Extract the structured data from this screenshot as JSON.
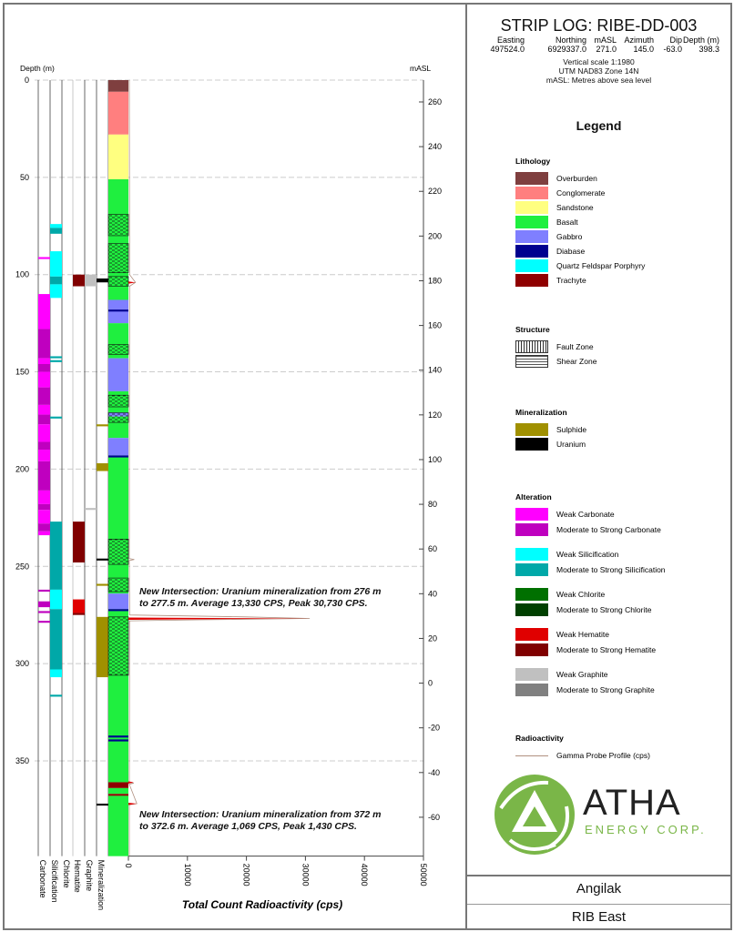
{
  "header": {
    "title": "STRIP LOG: RIBE-DD-003",
    "collar_labels": [
      "Easting",
      "Northing",
      "mASL",
      "Azimuth",
      "Dip",
      "Depth (m)"
    ],
    "collar_values": [
      "497524.0",
      "6929337.0",
      "271.0",
      "145.0",
      "-63.0",
      "398.3"
    ],
    "notes": [
      "Vertical scale 1:1980",
      "UTM NAD83 Zone 14N",
      "mASL: Metres above sea level"
    ]
  },
  "legend": {
    "title": "Legend",
    "sections": [
      {
        "title": "Lithology",
        "items": [
          {
            "label": "Overburden",
            "color": "#7f3f3f"
          },
          {
            "label": "Conglomerate",
            "color": "#ff7f7f"
          },
          {
            "label": "Sandstone",
            "color": "#ffff80"
          },
          {
            "label": "Basalt",
            "color": "#1fef3f"
          },
          {
            "label": "Gabbro",
            "color": "#7f7fff"
          },
          {
            "label": "Diabase",
            "color": "#00008f"
          },
          {
            "label": "Quartz Feldspar Porphyry",
            "color": "#00ffff"
          },
          {
            "label": "Trachyte",
            "color": "#8f0000"
          }
        ]
      },
      {
        "title": "Structure",
        "items": [
          {
            "label": "Fault Zone",
            "pattern": "fault"
          },
          {
            "label": "Shear Zone",
            "pattern": "shear"
          }
        ]
      },
      {
        "title": "Mineralization",
        "items": [
          {
            "label": "Sulphide",
            "color": "#a09000"
          },
          {
            "label": "Uranium",
            "color": "#000000"
          }
        ]
      },
      {
        "title": "Alteration",
        "items": [
          {
            "label": "Weak Carbonate",
            "color": "#ff00ff"
          },
          {
            "label": "Moderate to Strong Carbonate",
            "color": "#bf00bf"
          },
          {
            "label": "Weak Silicification",
            "color": "#00ffff"
          },
          {
            "label": "Moderate to Strong Silicification",
            "color": "#00a8a8"
          },
          {
            "label": "Weak Chlorite",
            "color": "#007000"
          },
          {
            "label": "Moderate to Strong Chlorite",
            "color": "#004000"
          },
          {
            "label": "Weak Hematite",
            "color": "#e00000"
          },
          {
            "label": "Moderate to Strong Hematite",
            "color": "#800000"
          },
          {
            "label": "Weak Graphite",
            "color": "#c0c0c0"
          },
          {
            "label": "Moderate to Strong Graphite",
            "color": "#808080"
          }
        ]
      },
      {
        "title": "Radioactivity",
        "items": [
          {
            "label": "Gamma Probe Profile (cps)",
            "line": "#b09080"
          }
        ]
      }
    ]
  },
  "logo": {
    "name": "ATHA",
    "sub": "ENERGY CORP."
  },
  "footer": {
    "project": "Angilak",
    "area": "RIB East"
  },
  "annotations": [
    {
      "text": [
        "New Intersection: Uranium mineralization from 276 m",
        "to 277.5 m. Average 13,330 CPS, Peak 30,730 CPS."
      ]
    },
    {
      "text": [
        "New Intersection: Uranium mineralization from 372 m",
        "to 372.6 m. Average 1,069 CPS, Peak 1,430 CPS."
      ]
    }
  ],
  "chart_data": {
    "type": "strip-log",
    "ylabel_left": "Depth (m)",
    "ylabel_right": "mASL",
    "xlabel": "Total Count Radioactivity (cps)",
    "depth_ticks": [
      0,
      50,
      100,
      150,
      200,
      250,
      300,
      350
    ],
    "masl_ticks": [
      260,
      240,
      220,
      200,
      180,
      160,
      140,
      120,
      100,
      80,
      60,
      40,
      20,
      0,
      -20,
      -40,
      -60
    ],
    "cps_ticks": [
      0,
      10000,
      20000,
      30000,
      40000,
      50000
    ],
    "depth_range": [
      0,
      399
    ],
    "cps_range": [
      0,
      50000
    ],
    "columns": [
      "Carbonate",
      "Silicification",
      "Chlorite",
      "Hematite",
      "Graphite",
      "Mineralization"
    ],
    "lithology": [
      [
        0,
        6,
        "Overburden"
      ],
      [
        6,
        28,
        "Conglomerate"
      ],
      [
        28,
        51,
        "Sandstone"
      ],
      [
        51,
        113,
        "Basalt"
      ],
      [
        113,
        125,
        "Gabbro"
      ],
      [
        125,
        143,
        "Basalt"
      ],
      [
        143,
        160,
        "Gabbro"
      ],
      [
        160,
        171,
        "Basalt"
      ],
      [
        171,
        173,
        "Gabbro"
      ],
      [
        173,
        184,
        "Basalt"
      ],
      [
        184,
        193,
        "Gabbro"
      ],
      [
        193,
        264,
        "Basalt"
      ],
      [
        264,
        272,
        "Gabbro"
      ],
      [
        272,
        361,
        "Basalt"
      ],
      [
        361,
        364,
        "Trachyte"
      ],
      [
        364,
        367,
        "Basalt"
      ],
      [
        367,
        368,
        "Trachyte"
      ],
      [
        368,
        399,
        "Basalt"
      ]
    ],
    "diabase": [
      [
        118,
        119
      ],
      [
        193,
        194
      ],
      [
        272,
        273
      ],
      [
        337,
        338
      ],
      [
        339,
        340
      ]
    ],
    "shear": [
      [
        69,
        80
      ],
      [
        84,
        99
      ],
      [
        101,
        106
      ],
      [
        136,
        141
      ],
      [
        162,
        168
      ],
      [
        171,
        176
      ],
      [
        236,
        249
      ],
      [
        256,
        263
      ],
      [
        276,
        306
      ]
    ],
    "carbonate": [
      [
        110,
        128,
        "w"
      ],
      [
        128,
        143,
        "m"
      ],
      [
        143,
        146,
        "w"
      ],
      [
        146,
        150,
        "m"
      ],
      [
        150,
        158,
        "w"
      ],
      [
        158,
        167,
        "m"
      ],
      [
        167,
        172,
        "w"
      ],
      [
        172,
        177,
        "m"
      ],
      [
        177,
        186,
        "w"
      ],
      [
        186,
        190,
        "m"
      ],
      [
        190,
        196,
        "w"
      ],
      [
        196,
        211,
        "m"
      ],
      [
        211,
        218,
        "w"
      ],
      [
        218,
        221,
        "m"
      ],
      [
        221,
        228,
        "w"
      ],
      [
        228,
        232,
        "m"
      ],
      [
        232,
        234,
        "w"
      ],
      [
        262,
        263,
        "m"
      ],
      [
        268,
        271,
        "m"
      ],
      [
        273,
        274,
        "m"
      ],
      [
        278,
        279,
        "m"
      ],
      [
        91,
        92,
        "w"
      ]
    ],
    "silicification": [
      [
        74,
        76,
        "w"
      ],
      [
        76,
        79,
        "m"
      ],
      [
        88,
        101,
        "w"
      ],
      [
        101,
        105,
        "m"
      ],
      [
        105,
        112,
        "w"
      ],
      [
        142,
        143,
        "m"
      ],
      [
        144,
        145,
        "m"
      ],
      [
        173,
        174,
        "m"
      ],
      [
        227,
        262,
        "m"
      ],
      [
        262,
        272,
        "w"
      ],
      [
        272,
        303,
        "m"
      ],
      [
        303,
        307,
        "w"
      ],
      [
        316,
        317,
        "m"
      ]
    ],
    "hematite": [
      [
        100,
        106,
        "m"
      ],
      [
        227,
        248,
        "m"
      ],
      [
        267,
        274,
        "w"
      ],
      [
        274,
        275,
        "m"
      ]
    ],
    "graphite": [
      [
        100,
        106,
        "w"
      ],
      [
        220,
        221,
        "w"
      ]
    ],
    "mineralization": [
      [
        102,
        104,
        "Uranium"
      ],
      [
        177,
        178,
        "Sulphide"
      ],
      [
        197,
        201,
        "Sulphide"
      ],
      [
        246,
        247,
        "Uranium"
      ],
      [
        259,
        260,
        "Sulphide"
      ],
      [
        276,
        307,
        "Sulphide"
      ],
      [
        372,
        373,
        "Uranium"
      ]
    ],
    "gamma": [
      [
        0,
        150
      ],
      [
        100,
        200
      ],
      [
        104,
        1200
      ],
      [
        106,
        200
      ],
      [
        200,
        150
      ],
      [
        246,
        150
      ],
      [
        246.5,
        1000
      ],
      [
        247,
        150
      ],
      [
        275,
        200
      ],
      [
        276,
        20000
      ],
      [
        276.8,
        30730
      ],
      [
        277.5,
        12000
      ],
      [
        278,
        200
      ],
      [
        361,
        150
      ],
      [
        361.5,
        900
      ],
      [
        362,
        150
      ],
      [
        372,
        1430
      ],
      [
        372.6,
        150
      ],
      [
        399,
        150
      ]
    ]
  }
}
